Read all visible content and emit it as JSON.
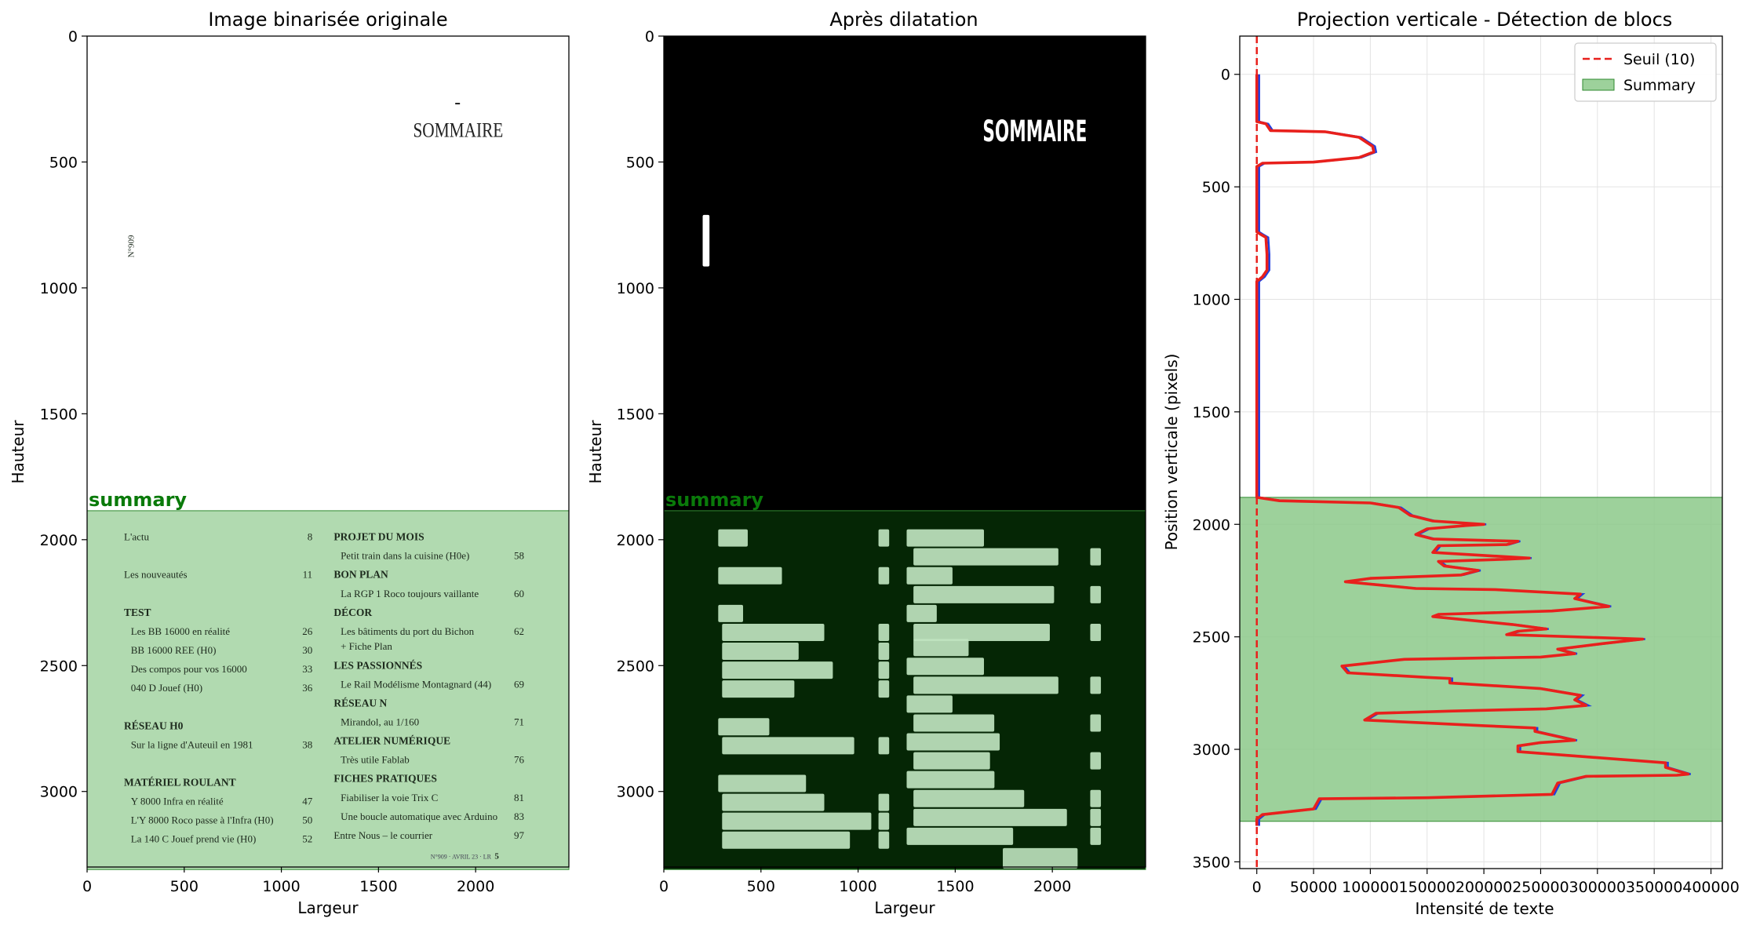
{
  "chart_data": [
    {
      "type": "image",
      "title": "Image binarisée originale",
      "xlabel": "Largeur",
      "ylabel": "Hauteur",
      "xlim": [
        0,
        2480
      ],
      "ylim": [
        3300,
        0
      ],
      "xticks": [
        0,
        500,
        1000,
        1500,
        2000
      ],
      "yticks": [
        0,
        500,
        1000,
        1500,
        2000,
        2500,
        3000
      ],
      "summary_region": {
        "label": "summary",
        "y_start": 1885,
        "y_end": 3310
      }
    },
    {
      "type": "image",
      "title": "Après dilatation",
      "xlabel": "Largeur",
      "ylabel": "Hauteur",
      "xlim": [
        0,
        2480
      ],
      "ylim": [
        3300,
        0
      ],
      "xticks": [
        0,
        500,
        1000,
        1500,
        2000
      ],
      "yticks": [
        0,
        500,
        1000,
        1500,
        2000,
        2500,
        3000
      ],
      "summary_region": {
        "label": "summary",
        "y_start": 1885,
        "y_end": 3310
      }
    },
    {
      "type": "line",
      "title": "Projection verticale - Détection de blocs",
      "xlabel": "Intensité de texte",
      "ylabel": "Position verticale (pixels)",
      "xlim": [
        -15000,
        410000
      ],
      "ylim": [
        3530,
        -170
      ],
      "xticks": [
        0,
        50000,
        100000,
        150000,
        200000,
        250000,
        300000,
        350000,
        400000
      ],
      "yticks": [
        0,
        500,
        1000,
        1500,
        2000,
        2500,
        3000,
        3500
      ],
      "grid": true,
      "legend_position": "top-right",
      "threshold": {
        "name": "Seuil (10)",
        "value": 10,
        "color": "#e8201c"
      },
      "summary_span": {
        "name": "Summary",
        "y_start": 1880,
        "y_end": 3320,
        "color": "#8cc98a"
      },
      "series": [
        {
          "color": "#e8201c",
          "points": [
            [
              0,
              0
            ],
            [
              0,
              210
            ],
            [
              8000,
              220
            ],
            [
              12000,
              250
            ],
            [
              60000,
              255
            ],
            [
              90000,
              280
            ],
            [
              102000,
              320
            ],
            [
              103000,
              345
            ],
            [
              90000,
              370
            ],
            [
              50000,
              390
            ],
            [
              5000,
              395
            ],
            [
              0,
              410
            ],
            [
              0,
              700
            ],
            [
              3000,
              710
            ],
            [
              8000,
              725
            ],
            [
              9000,
              800
            ],
            [
              9000,
              870
            ],
            [
              5000,
              900
            ],
            [
              0,
              920
            ],
            [
              0,
              1880
            ],
            [
              20000,
              1895
            ],
            [
              100000,
              1905
            ],
            [
              125000,
              1925
            ],
            [
              135000,
              1960
            ],
            [
              155000,
              1985
            ],
            [
              200000,
              2000
            ],
            [
              185000,
              2005
            ],
            [
              150000,
              2020
            ],
            [
              140000,
              2045
            ],
            [
              155000,
              2065
            ],
            [
              230000,
              2075
            ],
            [
              220000,
              2090
            ],
            [
              160000,
              2095
            ],
            [
              155000,
              2125
            ],
            [
              240000,
              2150
            ],
            [
              220000,
              2155
            ],
            [
              160000,
              2165
            ],
            [
              165000,
              2185
            ],
            [
              195000,
              2205
            ],
            [
              180000,
              2225
            ],
            [
              100000,
              2240
            ],
            [
              78000,
              2255
            ],
            [
              140000,
              2285
            ],
            [
              210000,
              2290
            ],
            [
              285000,
              2310
            ],
            [
              280000,
              2330
            ],
            [
              310000,
              2365
            ],
            [
              260000,
              2385
            ],
            [
              160000,
              2400
            ],
            [
              155000,
              2410
            ],
            [
              225000,
              2445
            ],
            [
              255000,
              2465
            ],
            [
              230000,
              2475
            ],
            [
              220000,
              2490
            ],
            [
              340000,
              2510
            ],
            [
              305000,
              2530
            ],
            [
              265000,
              2555
            ],
            [
              280000,
              2575
            ],
            [
              250000,
              2590
            ],
            [
              130000,
              2600
            ],
            [
              75000,
              2630
            ],
            [
              80000,
              2660
            ],
            [
              150000,
              2680
            ],
            [
              170000,
              2685
            ],
            [
              170000,
              2705
            ],
            [
              250000,
              2730
            ],
            [
              285000,
              2760
            ],
            [
              280000,
              2780
            ],
            [
              290000,
              2805
            ],
            [
              255000,
              2820
            ],
            [
              170000,
              2830
            ],
            [
              105000,
              2840
            ],
            [
              95000,
              2870
            ],
            [
              200000,
              2895
            ],
            [
              245000,
              2905
            ],
            [
              245000,
              2920
            ],
            [
              280000,
              2960
            ],
            [
              250000,
              2970
            ],
            [
              230000,
              2985
            ],
            [
              230000,
              3010
            ],
            [
              360000,
              3060
            ],
            [
              360000,
              3080
            ],
            [
              380000,
              3110
            ],
            [
              370000,
              3115
            ],
            [
              290000,
              3120
            ],
            [
              265000,
              3150
            ],
            [
              260000,
              3200
            ],
            [
              150000,
              3215
            ],
            [
              55000,
              3220
            ],
            [
              50000,
              3265
            ],
            [
              5000,
              3290
            ],
            [
              0,
              3310
            ],
            [
              0,
              3340
            ]
          ]
        }
      ]
    }
  ],
  "panel1": {
    "title": "Image binarisée originale",
    "xlabel": "Largeur",
    "ylabel": "Hauteur",
    "region_label": "summary",
    "doc": {
      "heading": "SOMMAIRE",
      "issue": "N°909",
      "left_entries": [
        {
          "text": "L'actu",
          "page": "8",
          "bold": false,
          "indent": false,
          "y": 1990
        },
        {
          "text": "Les nouveautés",
          "page": "11",
          "bold": false,
          "indent": false,
          "y": 2140
        },
        {
          "text": "TEST",
          "page": "",
          "bold": true,
          "indent": false,
          "y": 2290
        },
        {
          "text": "Les BB 16000 en réalité",
          "page": "26",
          "bold": false,
          "indent": true,
          "y": 2365
        },
        {
          "text": "BB 16000 REE (H0)",
          "page": "30",
          "bold": false,
          "indent": true,
          "y": 2440
        },
        {
          "text": "Des compos pour vos 16000",
          "page": "33",
          "bold": false,
          "indent": true,
          "y": 2515
        },
        {
          "text": "040 D Jouef (H0)",
          "page": "36",
          "bold": false,
          "indent": true,
          "y": 2590
        },
        {
          "text": "RÉSEAU H0",
          "page": "",
          "bold": true,
          "indent": false,
          "y": 2740
        },
        {
          "text": "Sur la ligne d'Auteuil en 1981",
          "page": "38",
          "bold": false,
          "indent": true,
          "y": 2815
        },
        {
          "text": "MATÉRIEL ROULANT",
          "page": "",
          "bold": true,
          "indent": false,
          "y": 2965
        },
        {
          "text": "Y 8000 Infra en réalité",
          "page": "47",
          "bold": false,
          "indent": true,
          "y": 3040
        },
        {
          "text": "L'Y 8000 Roco passe à l'Infra (H0)",
          "page": "50",
          "bold": false,
          "indent": true,
          "y": 3115
        },
        {
          "text": "La 140 C Jouef prend vie (H0)",
          "page": "52",
          "bold": false,
          "indent": true,
          "y": 3190
        }
      ],
      "right_entries": [
        {
          "text": "PROJET DU MOIS",
          "page": "",
          "bold": true,
          "indent": false,
          "y": 1990
        },
        {
          "text": "Petit train dans la cuisine (H0e)",
          "page": "58",
          "bold": false,
          "indent": true,
          "y": 2065
        },
        {
          "text": "BON PLAN",
          "page": "",
          "bold": true,
          "indent": false,
          "y": 2140
        },
        {
          "text": "La RGP 1 Roco toujours vaillante",
          "page": "60",
          "bold": false,
          "indent": true,
          "y": 2215
        },
        {
          "text": "DÉCOR",
          "page": "",
          "bold": true,
          "indent": false,
          "y": 2290
        },
        {
          "text": "Les bâtiments du port du Bichon",
          "page": "62",
          "bold": false,
          "indent": true,
          "y": 2365
        },
        {
          "text": "+ Fiche Plan",
          "page": "",
          "bold": false,
          "indent": true,
          "y": 2425
        },
        {
          "text": "LES PASSIONNÉS",
          "page": "",
          "bold": true,
          "indent": false,
          "y": 2500
        },
        {
          "text": "Le Rail Modélisme Montagnard (44)",
          "page": "69",
          "bold": false,
          "indent": true,
          "y": 2575
        },
        {
          "text": "RÉSEAU N",
          "page": "",
          "bold": true,
          "indent": false,
          "y": 2650
        },
        {
          "text": "Mirandol, au 1/160",
          "page": "71",
          "bold": false,
          "indent": true,
          "y": 2725
        },
        {
          "text": "ATELIER NUMÉRIQUE",
          "page": "",
          "bold": true,
          "indent": false,
          "y": 2800
        },
        {
          "text": "Très utile Fablab",
          "page": "76",
          "bold": false,
          "indent": true,
          "y": 2875
        },
        {
          "text": "FICHES PRATIQUES",
          "page": "",
          "bold": true,
          "indent": false,
          "y": 2950
        },
        {
          "text": "Fiabiliser la voie Trix C",
          "page": "81",
          "bold": false,
          "indent": true,
          "y": 3025
        },
        {
          "text": "Une boucle automatique avec Arduino",
          "page": "83",
          "bold": false,
          "indent": true,
          "y": 3100
        },
        {
          "text": "Entre Nous – le courrier",
          "page": "97",
          "bold": false,
          "indent": false,
          "y": 3175
        }
      ],
      "footer": "N°909 · AVRIL 23 · LR",
      "footer_page": "5"
    }
  },
  "panel2": {
    "title": "Après dilatation",
    "xlabel": "Largeur",
    "ylabel": "Hauteur",
    "region_label": "summary",
    "dilated_heading": "SOMMAIRE"
  },
  "panel3": {
    "title": "Projection verticale - Détection de blocs",
    "xlabel": "Intensité de texte",
    "ylabel": "Position verticale (pixels)",
    "legend": [
      {
        "label": "Seuil (10)",
        "kind": "dashed",
        "color": "#e8201c"
      },
      {
        "label": "Summary",
        "kind": "patch",
        "color": "#8cc98a"
      }
    ]
  },
  "colors": {
    "region_fill": "#8cc98a",
    "region_edge": "#2f8a2f",
    "zone_label": "#0a7a0a",
    "dilated_bg": "#000000",
    "dilated_region": "#052605",
    "profile": "#e8201c",
    "profile_under": "#1f3fe0"
  }
}
